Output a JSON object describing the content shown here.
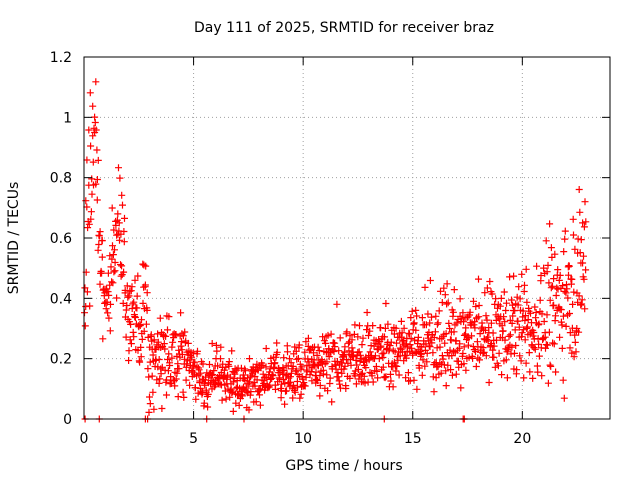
{
  "chart_data": {
    "type": "scatter",
    "title": "Day 111 of 2025, SRMTID for receiver braz",
    "xlabel": "GPS time / hours",
    "ylabel": "SRMTID / TECUs",
    "xlim": [
      0,
      24
    ],
    "ylim": [
      0,
      1.2
    ],
    "grid": true,
    "marker": "+",
    "marker_color": "#ff0000",
    "x_ticks": [
      0,
      5,
      10,
      15,
      20
    ],
    "x_tick_labels": [
      "0",
      "5",
      "10",
      "15",
      "20"
    ],
    "y_ticks": [
      0,
      0.2,
      0.4,
      0.6,
      0.8,
      1.0,
      1.2
    ],
    "y_tick_labels": [
      "0",
      "0.2",
      "0.4",
      "0.6",
      "0.8",
      "1",
      "1.2"
    ],
    "trend_profile": {
      "x": [
        0.0,
        0.1,
        0.3,
        0.45,
        0.6,
        0.8,
        1.0,
        1.3,
        1.6,
        1.8,
        2.0,
        2.3,
        2.6,
        2.8,
        3.0,
        3.3,
        3.6,
        4.0,
        4.5,
        5.0,
        5.5,
        6.0,
        6.5,
        7.0,
        7.5,
        8.0,
        8.5,
        9.0,
        9.5,
        10.0,
        11.0,
        12.0,
        13.0,
        14.0,
        15.0,
        16.0,
        17.0,
        18.0,
        19.0,
        20.0,
        20.5,
        21.0,
        21.5,
        22.0,
        22.5,
        22.9
      ],
      "y": [
        0.3,
        0.55,
        0.7,
        0.95,
        0.85,
        0.4,
        0.38,
        0.5,
        0.65,
        0.55,
        0.3,
        0.32,
        0.28,
        0.45,
        0.18,
        0.2,
        0.22,
        0.2,
        0.22,
        0.16,
        0.12,
        0.14,
        0.13,
        0.12,
        0.11,
        0.13,
        0.15,
        0.16,
        0.15,
        0.16,
        0.19,
        0.2,
        0.22,
        0.22,
        0.24,
        0.26,
        0.25,
        0.27,
        0.29,
        0.3,
        0.28,
        0.34,
        0.36,
        0.45,
        0.48,
        0.5
      ],
      "spread": [
        0.08,
        0.15,
        0.2,
        0.18,
        0.15,
        0.08,
        0.08,
        0.1,
        0.12,
        0.1,
        0.08,
        0.08,
        0.08,
        0.08,
        0.07,
        0.06,
        0.06,
        0.06,
        0.06,
        0.04,
        0.04,
        0.04,
        0.04,
        0.04,
        0.04,
        0.04,
        0.04,
        0.05,
        0.05,
        0.05,
        0.05,
        0.06,
        0.06,
        0.06,
        0.06,
        0.07,
        0.07,
        0.07,
        0.08,
        0.08,
        0.08,
        0.1,
        0.12,
        0.14,
        0.14,
        0.14
      ],
      "point_count": 1300
    },
    "zero_points_x": [
      0.05,
      0.7,
      2.8,
      2.9,
      5.6,
      7.3,
      13.7,
      17.3,
      17.35
    ]
  }
}
